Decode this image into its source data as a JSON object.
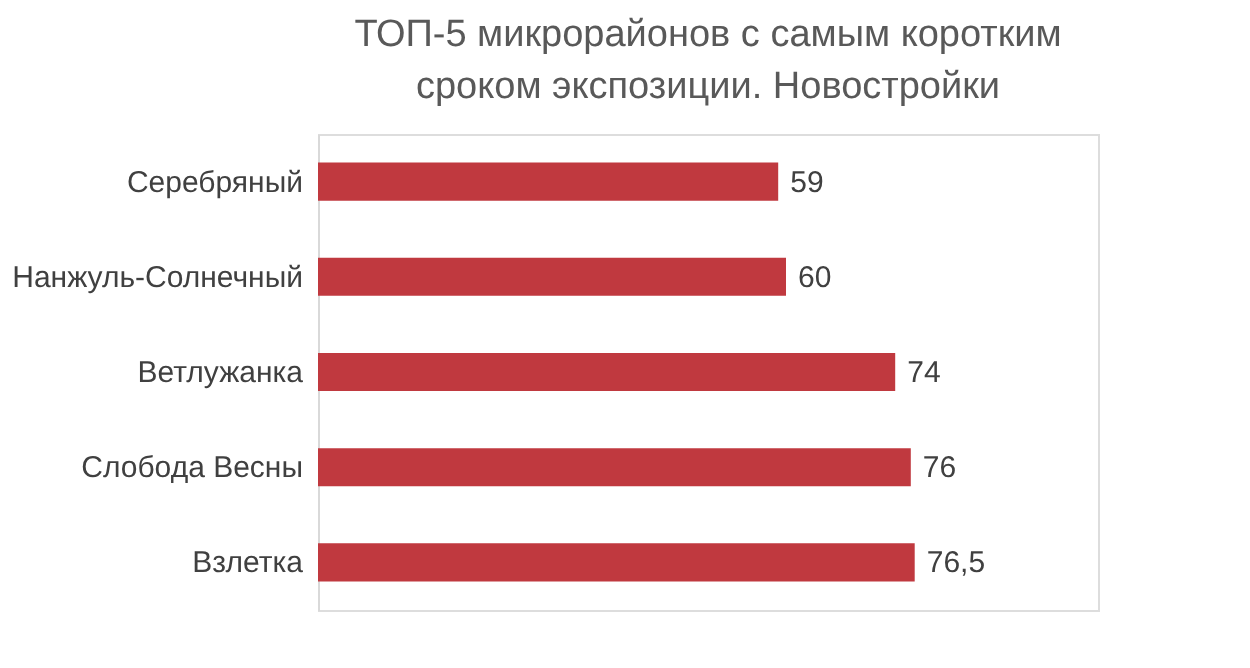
{
  "chart_data": {
    "type": "bar",
    "orientation": "horizontal",
    "title": [
      "ТОП-5 микрорайонов с самым коротким",
      "сроком экспозиции. Новостройки"
    ],
    "categories": [
      "Серебряный",
      "Нанжуль-Солнечный",
      "Ветлужанка",
      "Слобода Весны",
      "Взлетка"
    ],
    "values": [
      59,
      60,
      74,
      76,
      76.5
    ],
    "value_labels": [
      "59",
      "60",
      "74",
      "76",
      "76,5"
    ],
    "color": "#c0393f",
    "xlim": [
      0,
      100
    ],
    "tick_labels": "y"
  }
}
